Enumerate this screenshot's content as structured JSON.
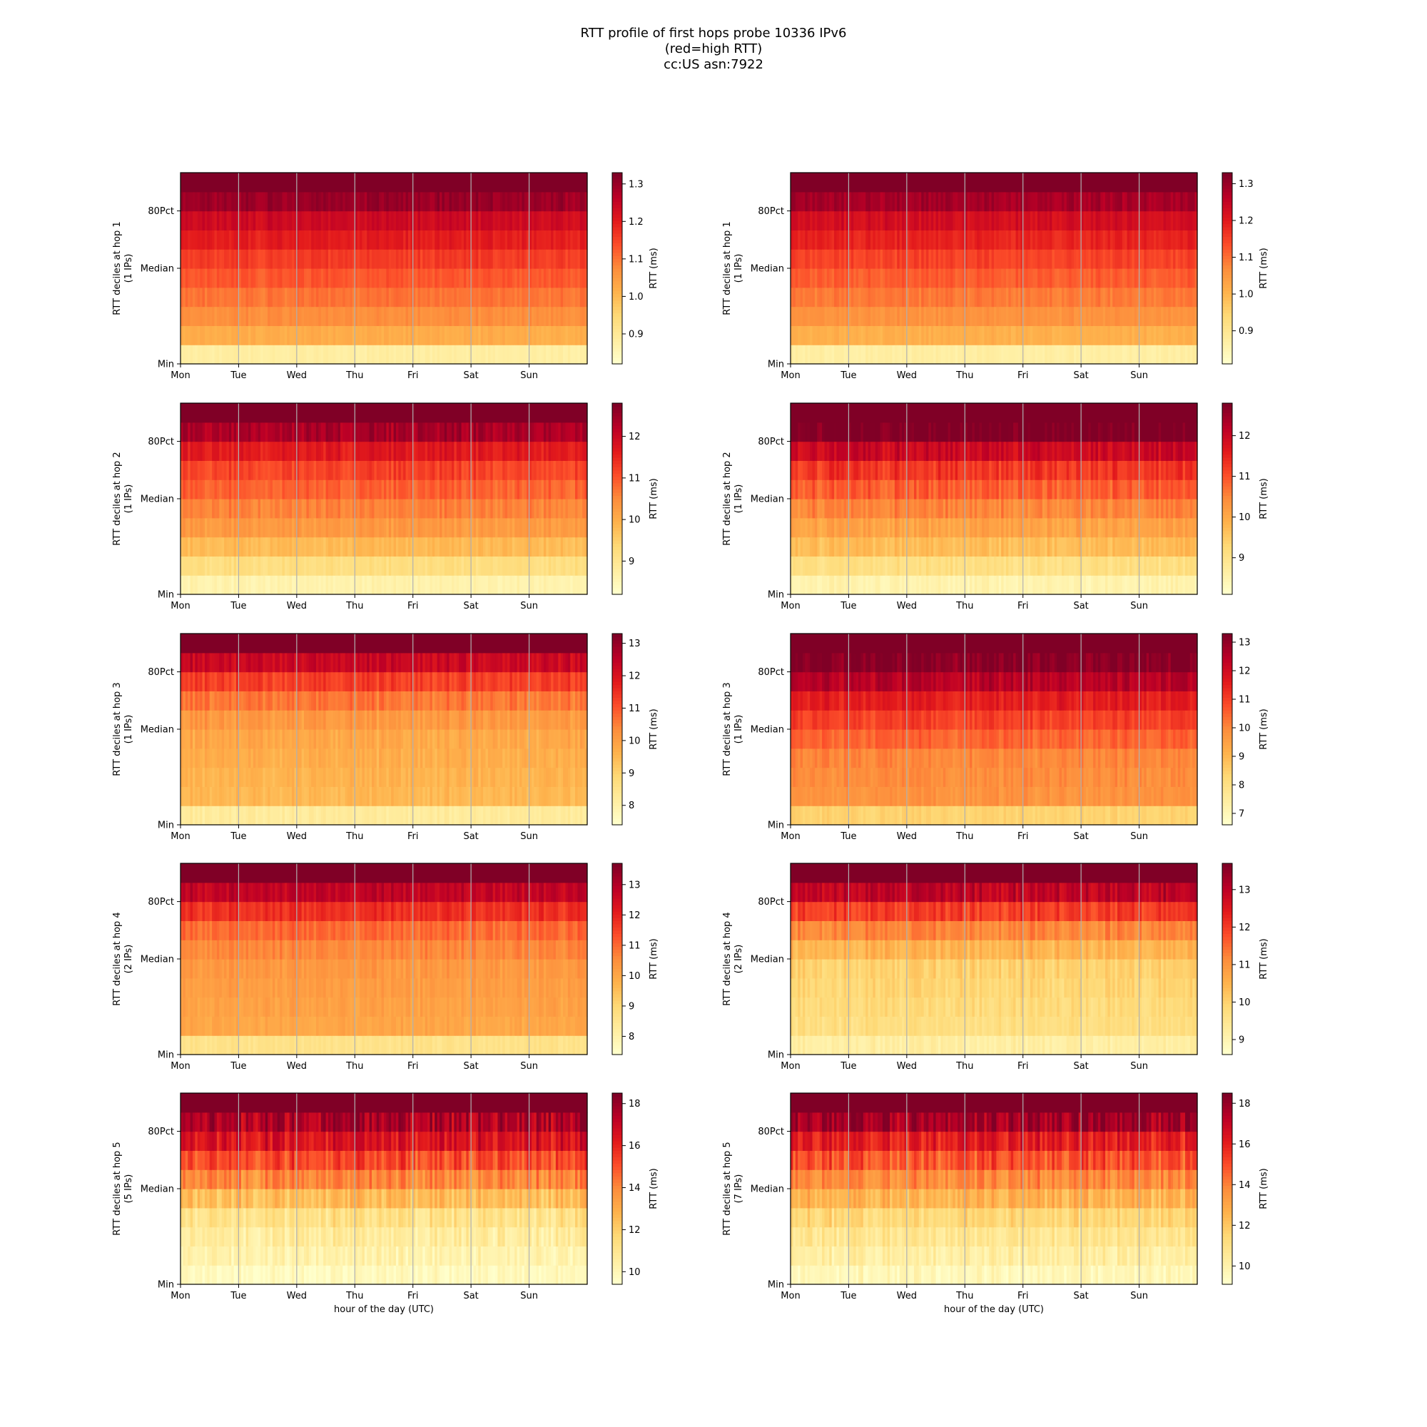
{
  "figure": {
    "title_lines": [
      "RTT profile of first hops probe 10336 IPv6",
      "(red=high RTT)",
      "cc:US asn:7922"
    ]
  },
  "colormap": [
    "#ffffcc",
    "#ffeda0",
    "#fed976",
    "#feb24c",
    "#fd8d3c",
    "#fc4e2a",
    "#e31a1c",
    "#bd0026",
    "#800026"
  ],
  "chart_data": [
    {
      "type": "heatmap",
      "hop": 1,
      "ylabel": "RTT deciles at hop 1",
      "ylabel2": "(1 IPs)",
      "xlabel": "",
      "x_ticks": [
        "Mon",
        "Tue",
        "Wed",
        "Thu",
        "Fri",
        "Sat",
        "Sun"
      ],
      "y_ticks": [
        "Min",
        "Median",
        "80Pct"
      ],
      "colorbar_label": "RTT (ms)",
      "vmin": 0.82,
      "vmax": 1.33,
      "colorbar_ticks": [
        "0.9",
        "1.0",
        "1.1",
        "1.2",
        "1.3"
      ],
      "decile_rtt_ms": [
        0.88,
        1.02,
        1.07,
        1.1,
        1.13,
        1.16,
        1.2,
        1.24,
        1.3,
        1.4
      ],
      "variability": 0.03
    },
    {
      "type": "heatmap",
      "hop": 1,
      "ylabel": "RTT deciles at hop 1",
      "ylabel2": "(1 IPs)",
      "xlabel": "",
      "x_ticks": [
        "Mon",
        "Tue",
        "Wed",
        "Thu",
        "Fri",
        "Sat",
        "Sun"
      ],
      "y_ticks": [
        "Min",
        "Median",
        "80Pct"
      ],
      "colorbar_label": "RTT (ms)",
      "vmin": 0.81,
      "vmax": 1.33,
      "colorbar_ticks": [
        "0.9",
        "1.0",
        "1.1",
        "1.2",
        "1.3"
      ],
      "decile_rtt_ms": [
        0.87,
        1.01,
        1.06,
        1.09,
        1.12,
        1.15,
        1.19,
        1.23,
        1.29,
        1.4
      ],
      "variability": 0.03
    },
    {
      "type": "heatmap",
      "hop": 2,
      "ylabel": "RTT deciles at hop 2",
      "ylabel2": "(1 IPs)",
      "xlabel": "",
      "x_ticks": [
        "Mon",
        "Tue",
        "Wed",
        "Thu",
        "Fri",
        "Sat",
        "Sun"
      ],
      "y_ticks": [
        "Min",
        "Median",
        "80Pct"
      ],
      "colorbar_label": "RTT (ms)",
      "vmin": 8.2,
      "vmax": 12.8,
      "colorbar_ticks": [
        "9",
        "10",
        "11",
        "12"
      ],
      "decile_rtt_ms": [
        8.6,
        9.2,
        9.8,
        10.3,
        10.6,
        10.9,
        11.2,
        11.7,
        12.4,
        13.5
      ],
      "variability": 0.35
    },
    {
      "type": "heatmap",
      "hop": 2,
      "ylabel": "RTT deciles at hop 2",
      "ylabel2": "(1 IPs)",
      "xlabel": "",
      "x_ticks": [
        "Mon",
        "Tue",
        "Wed",
        "Thu",
        "Fri",
        "Sat",
        "Sun"
      ],
      "y_ticks": [
        "Min",
        "Median",
        "80Pct"
      ],
      "colorbar_label": "RTT (ms)",
      "vmin": 8.1,
      "vmax": 12.8,
      "colorbar_ticks": [
        "9",
        "10",
        "11",
        "12"
      ],
      "decile_rtt_ms": [
        8.5,
        9.1,
        9.7,
        10.1,
        10.5,
        10.9,
        11.3,
        12.0,
        12.9,
        14.0
      ],
      "variability": 0.45
    },
    {
      "type": "heatmap",
      "hop": 3,
      "ylabel": "RTT deciles at hop 3",
      "ylabel2": "(1 IPs)",
      "xlabel": "",
      "x_ticks": [
        "Mon",
        "Tue",
        "Wed",
        "Thu",
        "Fri",
        "Sat",
        "Sun"
      ],
      "y_ticks": [
        "Min",
        "Median",
        "80Pct"
      ],
      "colorbar_label": "RTT (ms)",
      "vmin": 7.4,
      "vmax": 13.3,
      "colorbar_ticks": [
        "8",
        "9",
        "10",
        "11",
        "12",
        "13"
      ],
      "decile_rtt_ms": [
        8.2,
        9.5,
        9.6,
        9.7,
        9.8,
        10.1,
        10.6,
        11.3,
        12.3,
        14.0
      ],
      "variability": 0.45
    },
    {
      "type": "heatmap",
      "hop": 3,
      "ylabel": "RTT deciles at hop 3",
      "ylabel2": "(1 IPs)",
      "xlabel": "",
      "x_ticks": [
        "Mon",
        "Tue",
        "Wed",
        "Thu",
        "Fri",
        "Sat",
        "Sun"
      ],
      "y_ticks": [
        "Min",
        "Median",
        "80Pct"
      ],
      "colorbar_label": "RTT (ms)",
      "vmin": 6.6,
      "vmax": 13.3,
      "colorbar_ticks": [
        "7",
        "8",
        "9",
        "10",
        "11",
        "12",
        "13"
      ],
      "decile_rtt_ms": [
        8.4,
        9.8,
        9.9,
        10.0,
        10.5,
        11.0,
        11.6,
        12.5,
        13.2,
        14.5
      ],
      "variability": 0.55
    },
    {
      "type": "heatmap",
      "hop": 4,
      "ylabel": "RTT deciles at hop 4",
      "ylabel2": "(2 IPs)",
      "xlabel": "",
      "x_ticks": [
        "Mon",
        "Tue",
        "Wed",
        "Thu",
        "Fri",
        "Sat",
        "Sun"
      ],
      "y_ticks": [
        "Min",
        "Median",
        "80Pct"
      ],
      "colorbar_label": "RTT (ms)",
      "vmin": 7.4,
      "vmax": 13.7,
      "colorbar_ticks": [
        "8",
        "9",
        "10",
        "11",
        "12",
        "13"
      ],
      "decile_rtt_ms": [
        8.6,
        10.0,
        10.1,
        10.2,
        10.3,
        10.6,
        11.0,
        11.8,
        12.8,
        14.5
      ],
      "variability": 0.45
    },
    {
      "type": "heatmap",
      "hop": 4,
      "ylabel": "RTT deciles at hop 4",
      "ylabel2": "(2 IPs)",
      "xlabel": "",
      "x_ticks": [
        "Mon",
        "Tue",
        "Wed",
        "Thu",
        "Fri",
        "Sat",
        "Sun"
      ],
      "y_ticks": [
        "Min",
        "Median",
        "80Pct"
      ],
      "colorbar_label": "RTT (ms)",
      "vmin": 8.6,
      "vmax": 13.7,
      "colorbar_ticks": [
        "9",
        "10",
        "11",
        "12",
        "13"
      ],
      "decile_rtt_ms": [
        9.2,
        9.7,
        9.8,
        9.9,
        10.0,
        10.5,
        11.2,
        12.0,
        13.0,
        14.5
      ],
      "variability": 0.5
    },
    {
      "type": "heatmap",
      "hop": 5,
      "ylabel": "RTT deciles at hop 5",
      "ylabel2": "(5 IPs)",
      "xlabel": "hour of the day (UTC)",
      "x_ticks": [
        "Mon",
        "Tue",
        "Wed",
        "Thu",
        "Fri",
        "Sat",
        "Sun"
      ],
      "y_ticks": [
        "Min",
        "Median",
        "80Pct"
      ],
      "colorbar_label": "RTT (ms)",
      "vmin": 9.4,
      "vmax": 18.5,
      "colorbar_ticks": [
        "10",
        "12",
        "14",
        "16",
        "18"
      ],
      "decile_rtt_ms": [
        9.8,
        10.2,
        10.6,
        11.2,
        12.5,
        14.0,
        15.2,
        16.5,
        17.6,
        20.0
      ],
      "variability": 1.4
    },
    {
      "type": "heatmap",
      "hop": 5,
      "ylabel": "RTT deciles at hop 5",
      "ylabel2": "(7 IPs)",
      "xlabel": "hour of the day (UTC)",
      "x_ticks": [
        "Mon",
        "Tue",
        "Wed",
        "Thu",
        "Fri",
        "Sat",
        "Sun"
      ],
      "y_ticks": [
        "Min",
        "Median",
        "80Pct"
      ],
      "colorbar_label": "RTT (ms)",
      "vmin": 9.1,
      "vmax": 18.5,
      "colorbar_ticks": [
        "10",
        "12",
        "14",
        "16",
        "18"
      ],
      "decile_rtt_ms": [
        9.6,
        10.2,
        10.7,
        11.4,
        12.6,
        13.8,
        15.0,
        16.2,
        17.8,
        20.0
      ],
      "variability": 1.4
    }
  ]
}
